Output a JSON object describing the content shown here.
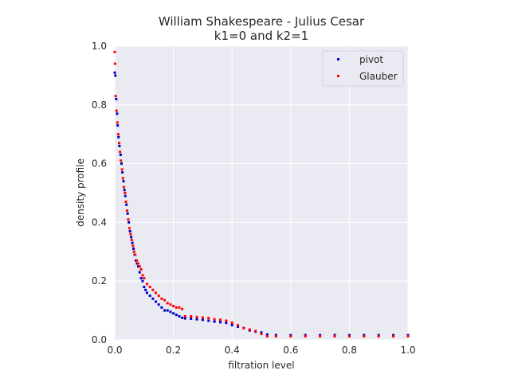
{
  "chart_data": {
    "type": "scatter",
    "title": "William Shakespeare - Julius Cesar",
    "subtitle": "k1=0 and k2=1",
    "xlabel": "filtration level",
    "ylabel": "density profile",
    "xlim": [
      0.0,
      1.0
    ],
    "ylim": [
      0.0,
      1.0
    ],
    "xticks": [
      "0.0",
      "0.2",
      "0.4",
      "0.6",
      "0.8",
      "1.0"
    ],
    "yticks": [
      "0.0",
      "0.2",
      "0.4",
      "0.6",
      "0.8",
      "1.0"
    ],
    "grid": true,
    "legend_position": "top-right",
    "background": "#eaeaf2",
    "series": [
      {
        "name": "pivot",
        "color": "#0000cc",
        "x": [
          0.0,
          0.002,
          0.005,
          0.008,
          0.01,
          0.013,
          0.016,
          0.02,
          0.023,
          0.026,
          0.03,
          0.033,
          0.036,
          0.04,
          0.044,
          0.048,
          0.052,
          0.056,
          0.06,
          0.064,
          0.068,
          0.072,
          0.076,
          0.08,
          0.085,
          0.09,
          0.095,
          0.1,
          0.105,
          0.11,
          0.12,
          0.13,
          0.14,
          0.15,
          0.16,
          0.17,
          0.18,
          0.19,
          0.2,
          0.21,
          0.22,
          0.23,
          0.24,
          0.26,
          0.28,
          0.3,
          0.32,
          0.34,
          0.36,
          0.38,
          0.4,
          0.42,
          0.44,
          0.46,
          0.48,
          0.5,
          0.52,
          0.55,
          0.6,
          0.65,
          0.7,
          0.75,
          0.8,
          0.85,
          0.9,
          0.95,
          1.0
        ],
        "y": [
          0.91,
          0.9,
          0.82,
          0.77,
          0.73,
          0.69,
          0.66,
          0.63,
          0.6,
          0.57,
          0.54,
          0.51,
          0.49,
          0.46,
          0.43,
          0.4,
          0.37,
          0.35,
          0.33,
          0.31,
          0.29,
          0.27,
          0.26,
          0.25,
          0.23,
          0.21,
          0.2,
          0.18,
          0.17,
          0.16,
          0.15,
          0.14,
          0.13,
          0.12,
          0.11,
          0.1,
          0.1,
          0.095,
          0.09,
          0.085,
          0.08,
          0.075,
          0.073,
          0.072,
          0.07,
          0.068,
          0.065,
          0.062,
          0.06,
          0.058,
          0.05,
          0.045,
          0.04,
          0.032,
          0.028,
          0.025,
          0.018,
          0.016,
          0.016,
          0.016,
          0.016,
          0.016,
          0.016,
          0.016,
          0.016,
          0.016,
          0.016
        ]
      },
      {
        "name": "Glauber",
        "color": "#ff0000",
        "x": [
          0.0,
          0.001,
          0.003,
          0.006,
          0.009,
          0.012,
          0.015,
          0.018,
          0.021,
          0.025,
          0.028,
          0.031,
          0.035,
          0.038,
          0.042,
          0.046,
          0.05,
          0.054,
          0.058,
          0.062,
          0.066,
          0.07,
          0.075,
          0.08,
          0.085,
          0.09,
          0.095,
          0.1,
          0.11,
          0.12,
          0.13,
          0.14,
          0.15,
          0.16,
          0.17,
          0.18,
          0.19,
          0.2,
          0.21,
          0.22,
          0.23,
          0.24,
          0.26,
          0.28,
          0.3,
          0.32,
          0.34,
          0.36,
          0.38,
          0.4,
          0.42,
          0.44,
          0.46,
          0.48,
          0.5,
          0.52,
          0.55,
          0.6,
          0.65,
          0.7,
          0.75,
          0.8,
          0.85,
          0.9,
          0.95,
          1.0
        ],
        "y": [
          0.98,
          0.94,
          0.83,
          0.78,
          0.74,
          0.7,
          0.67,
          0.64,
          0.61,
          0.58,
          0.55,
          0.52,
          0.5,
          0.47,
          0.44,
          0.41,
          0.38,
          0.36,
          0.34,
          0.32,
          0.3,
          0.29,
          0.27,
          0.26,
          0.25,
          0.24,
          0.22,
          0.21,
          0.19,
          0.18,
          0.17,
          0.16,
          0.15,
          0.14,
          0.135,
          0.125,
          0.12,
          0.115,
          0.11,
          0.11,
          0.105,
          0.08,
          0.08,
          0.078,
          0.076,
          0.074,
          0.07,
          0.068,
          0.065,
          0.058,
          0.05,
          0.04,
          0.035,
          0.03,
          0.02,
          0.012,
          0.012,
          0.012,
          0.012,
          0.012,
          0.012,
          0.012,
          0.012,
          0.012,
          0.012,
          0.012
        ]
      }
    ]
  }
}
